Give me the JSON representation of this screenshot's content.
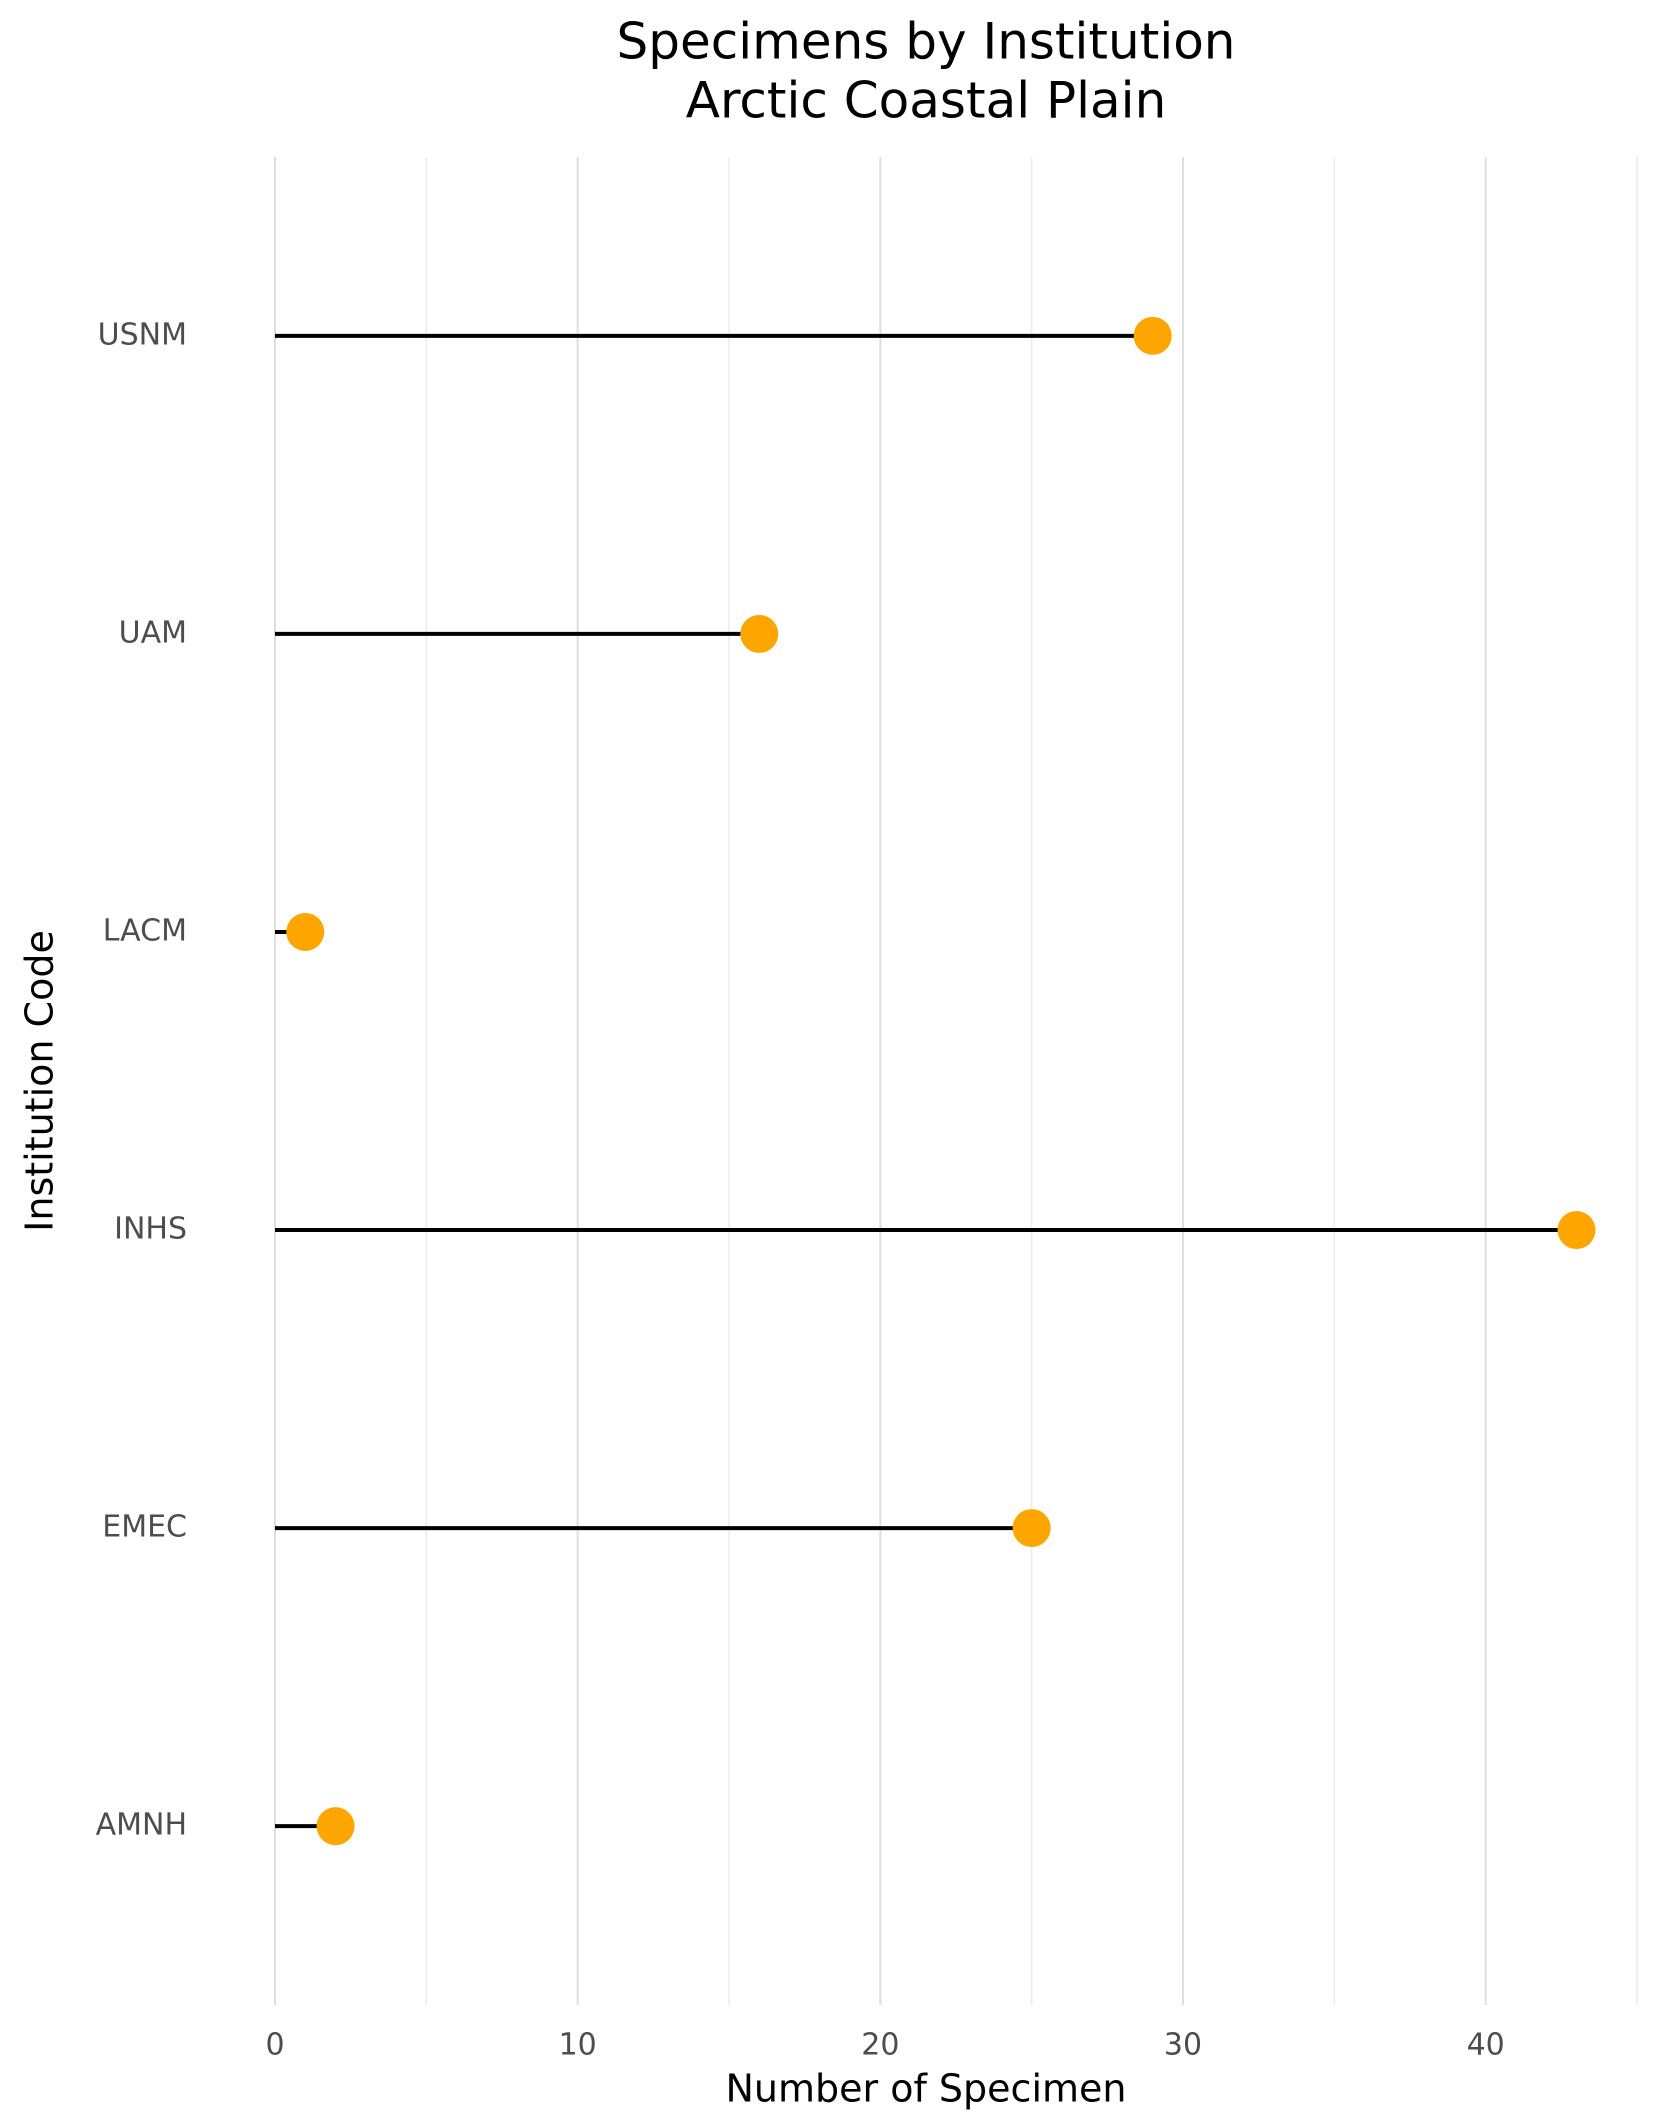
{
  "chart_data": {
    "type": "lollipop",
    "title": "Specimens by Institution",
    "subtitle": "Arctic Coastal Plain",
    "x_label": "Number of Specimen",
    "y_label": "Institution Code",
    "categories": [
      "USNM",
      "UAM",
      "LACM",
      "INHS",
      "EMEC",
      "AMNH"
    ],
    "values": [
      29,
      16,
      1,
      43,
      25,
      2
    ],
    "color": "#FFA500",
    "stem_color": "#000000",
    "xlim": [
      0,
      45
    ],
    "xticks": [
      0,
      10,
      20,
      30,
      40
    ],
    "x_minor_grid": [
      5,
      15,
      25,
      35,
      45
    ],
    "grid": true
  }
}
